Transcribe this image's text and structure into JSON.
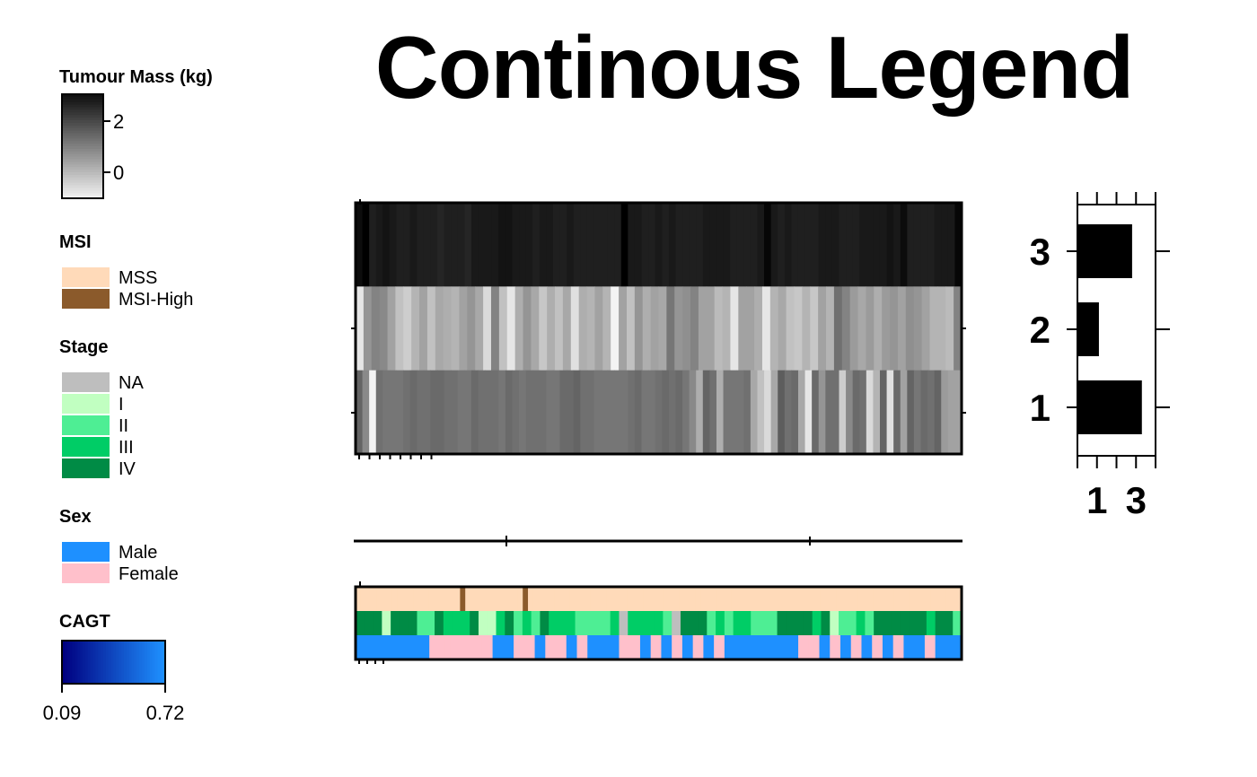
{
  "chart_data": {
    "type": "heatmap",
    "title": "Continous Legend",
    "colors": {
      "msi": {
        "MSS": "#FFDAB9",
        "MSI-High": "#8B5A2B"
      },
      "stage": {
        "NA": "#BEBEBE",
        "I": "#C1FFC1",
        "II": "#4EEE94",
        "III": "#00CD66",
        "IV": "#008B45"
      },
      "sex": {
        "Male": "#1E90FF",
        "Female": "#FFC0CB"
      },
      "cagt": {
        "low": "#000080",
        "high": "#1E90FF"
      }
    },
    "legends": {
      "tumour_mass": {
        "title": "Tumour Mass (kg)",
        "ticks": [
          "2",
          "0"
        ]
      },
      "msi": {
        "title": "MSI",
        "labels": [
          "MSS",
          "MSI-High"
        ]
      },
      "stage": {
        "title": "Stage",
        "labels": [
          "NA",
          "I",
          "II",
          "III",
          "IV"
        ]
      },
      "sex": {
        "title": "Sex",
        "labels": [
          "Male",
          "Female"
        ]
      },
      "cagt": {
        "title": "CAGT",
        "min_label": "0.09",
        "max_label": "0.72",
        "range": [
          0.09,
          0.72
        ]
      }
    },
    "heatmap_values": [
      [
        2.9,
        3.1,
        2.6,
        2.7,
        2.8,
        2.7,
        2.6,
        2.6,
        2.7,
        2.6,
        2.6,
        2.6,
        2.5,
        2.6,
        2.6,
        2.6,
        2.5,
        2.7,
        2.7,
        2.7,
        2.7,
        2.8,
        2.8,
        2.7,
        2.7,
        2.7,
        2.6,
        2.7,
        2.7,
        2.6,
        2.6,
        2.7,
        2.6,
        2.6,
        2.6,
        2.6,
        2.6,
        2.6,
        2.6,
        3.1,
        2.7,
        2.7,
        2.6,
        2.6,
        2.7,
        2.6,
        2.7,
        2.6,
        2.6,
        2.6,
        2.6,
        2.7,
        2.7,
        2.7,
        2.7,
        2.6,
        2.6,
        2.6,
        2.6,
        2.7,
        3.0,
        2.7,
        2.6,
        2.7,
        2.6,
        2.6,
        2.6,
        2.6,
        2.7,
        2.7,
        2.7,
        2.6,
        2.6,
        2.6,
        2.7,
        2.7,
        2.7,
        2.7,
        2.8,
        2.7,
        2.9,
        2.6,
        2.6,
        2.6,
        2.6,
        2.7,
        2.7,
        2.7,
        3.0
      ],
      [
        -0.6,
        0.7,
        1.0,
        0.9,
        0.5,
        0.0,
        -0.2,
        0.2,
        0.5,
        0.0,
        0.4,
        0.3,
        0.2,
        0.5,
        0.7,
        0.4,
        -0.4,
        1.0,
        0.0,
        -0.6,
        0.3,
        0.7,
        0.4,
        -0.1,
        0.3,
        0.0,
        0.4,
        -0.5,
        0.3,
        0.2,
        0.5,
        0.2,
        -0.8,
        0.5,
        0.0,
        0.7,
        0.3,
        0.5,
        0.4,
        1.2,
        0.7,
        0.8,
        1.0,
        0.5,
        0.5,
        0.1,
        0.2,
        -0.6,
        0.5,
        0.5,
        0.3,
        -0.6,
        0.2,
        0.4,
        0.0,
        -0.1,
        0.2,
        -0.1,
        0.5,
        0.2,
        1.3,
        1.0,
        0.6,
        0.4,
        0.6,
        0.3,
        0.6,
        0.7,
        0.5,
        0.8,
        0.7,
        0.5,
        0.2,
        0.2,
        0.1,
        1.0
      ],
      [
        1.5,
        0.9,
        -0.8,
        1.3,
        1.2,
        1.2,
        1.2,
        1.3,
        1.4,
        1.3,
        1.3,
        1.4,
        1.4,
        1.3,
        1.3,
        1.2,
        1.2,
        1.4,
        1.3,
        1.3,
        1.3,
        1.2,
        1.4,
        1.3,
        1.2,
        1.3,
        1.3,
        1.3,
        1.2,
        1.2,
        1.4,
        1.4,
        1.5,
        1.3,
        1.3,
        1.2,
        1.2,
        1.2,
        1.2,
        1.2,
        1.3,
        1.4,
        1.2,
        1.2,
        1.3,
        1.4,
        1.3,
        1.4,
        1.2,
        0.9,
        0.3,
        1.5,
        1.3,
        0.3,
        1.2,
        1.2,
        1.2,
        1.3,
        0.4,
        0.0,
        -0.4,
        0.4,
        1.6,
        1.3,
        1.4,
        0.4,
        -0.6,
        1.4,
        0.7,
        1.3,
        1.3,
        -0.2,
        0.9,
        1.4,
        1.3,
        -0.4,
        0.2,
        1.5,
        -0.5,
        1.4,
        0.5,
        1.5,
        1.2,
        1.4,
        1.3,
        1.5,
        0.6,
        0.5,
        0.5
      ]
    ],
    "msi_values": [
      "MSS",
      "MSS",
      "MSS",
      "MSS",
      "MSS",
      "MSS",
      "MSS",
      "MSS",
      "MSS",
      "MSS",
      "MSS",
      "MSS",
      "MSS",
      "MSS",
      "MSS",
      "MSS",
      "MSS",
      "MSS",
      "MSS",
      "MSS",
      "MSI-High",
      "MSS",
      "MSS",
      "MSS",
      "MSS",
      "MSS",
      "MSS",
      "MSS",
      "MSS",
      "MSS",
      "MSS",
      "MSS",
      "MSI-High",
      "MSS",
      "MSS",
      "MSS",
      "MSS",
      "MSS",
      "MSS",
      "MSS",
      "MSS",
      "MSS",
      "MSS",
      "MSS",
      "MSS",
      "MSS",
      "MSS",
      "MSS",
      "MSS",
      "MSS",
      "MSS",
      "MSS",
      "MSS",
      "MSS",
      "MSS",
      "MSS",
      "MSS",
      "MSS",
      "MSS",
      "MSS",
      "MSS",
      "MSS",
      "MSS",
      "MSS",
      "MSS",
      "MSS",
      "MSS",
      "MSS",
      "MSS",
      "MSS",
      "MSS",
      "MSS",
      "MSS",
      "MSS",
      "MSS",
      "MSS",
      "MSS",
      "MSS",
      "MSS",
      "MSS",
      "MSS",
      "MSS",
      "MSS",
      "MSS",
      "MSS",
      "MSS",
      "MSS",
      "MSS",
      "MSS",
      "MSS",
      "MSS",
      "MSS",
      "MSS",
      "MSS",
      "MSS",
      "MSS",
      "MSS",
      "MSS",
      "MSS",
      "MSS",
      "MSS",
      "MSS",
      "MSS",
      "MSS",
      "MSS",
      "MSS",
      "MSS",
      "MSS",
      "MSS",
      "MSS",
      "MSS",
      "MSS",
      "MSS",
      "MSS",
      "MSS",
      "MSS"
    ],
    "stage_values": [
      "IV",
      "IV",
      "IV",
      "I",
      "IV",
      "IV",
      "IV",
      "II",
      "II",
      "IV",
      "III",
      "III",
      "III",
      "IV",
      "I",
      "I",
      "III",
      "IV",
      "II",
      "III",
      "II",
      "IV",
      "III",
      "III",
      "III",
      "II",
      "II",
      "II",
      "II",
      "III",
      "NA",
      "III",
      "III",
      "III",
      "III",
      "II",
      "NA",
      "IV",
      "IV",
      "IV",
      "II",
      "III",
      "II",
      "III",
      "III",
      "II",
      "II",
      "II",
      "IV",
      "IV",
      "IV",
      "IV",
      "III",
      "IV",
      "I",
      "II",
      "II",
      "III",
      "II",
      "IV",
      "IV",
      "IV",
      "IV",
      "IV",
      "IV",
      "III",
      "IV",
      "IV",
      "II"
    ],
    "sex_values": [
      "Male",
      "Male",
      "Male",
      "Male",
      "Male",
      "Male",
      "Male",
      "Male",
      "Male",
      "Male",
      "Male",
      "Male",
      "Male",
      "Male",
      "Female",
      "Female",
      "Female",
      "Female",
      "Female",
      "Female",
      "Female",
      "Female",
      "Female",
      "Female",
      "Female",
      "Female",
      "Male",
      "Male",
      "Male",
      "Male",
      "Female",
      "Female",
      "Female",
      "Female",
      "Male",
      "Male",
      "Female",
      "Female",
      "Female",
      "Female",
      "Male",
      "Male",
      "Female",
      "Female",
      "Male",
      "Male",
      "Male",
      "Male",
      "Male",
      "Male",
      "Female",
      "Female",
      "Female",
      "Female",
      "Male",
      "Male",
      "Female",
      "Female",
      "Male",
      "Male",
      "Female",
      "Female",
      "Male",
      "Male",
      "Female",
      "Female",
      "Male",
      "Male",
      "Female",
      "Female",
      "Male",
      "Male",
      "Male",
      "Male",
      "Male",
      "Male",
      "Male",
      "Male",
      "Male",
      "Male",
      "Male",
      "Male",
      "Male",
      "Male",
      "Female",
      "Female",
      "Female",
      "Female",
      "Male",
      "Male",
      "Female",
      "Female",
      "Male",
      "Male",
      "Female",
      "Female",
      "Male",
      "Male",
      "Female",
      "Female",
      "Male",
      "Male",
      "Female",
      "Female",
      "Male",
      "Male",
      "Male",
      "Male",
      "Female",
      "Female",
      "Male",
      "Male",
      "Male",
      "Male",
      "Male"
    ],
    "side_bar": {
      "categories": [
        "1",
        "2",
        "3"
      ],
      "values": [
        3.3,
        1.1,
        2.8
      ],
      "y_tick_labels": [
        "1",
        "2",
        "3"
      ],
      "x_tick_labels": [
        "1",
        "3"
      ],
      "xlim": [
        0,
        4.0
      ]
    }
  }
}
